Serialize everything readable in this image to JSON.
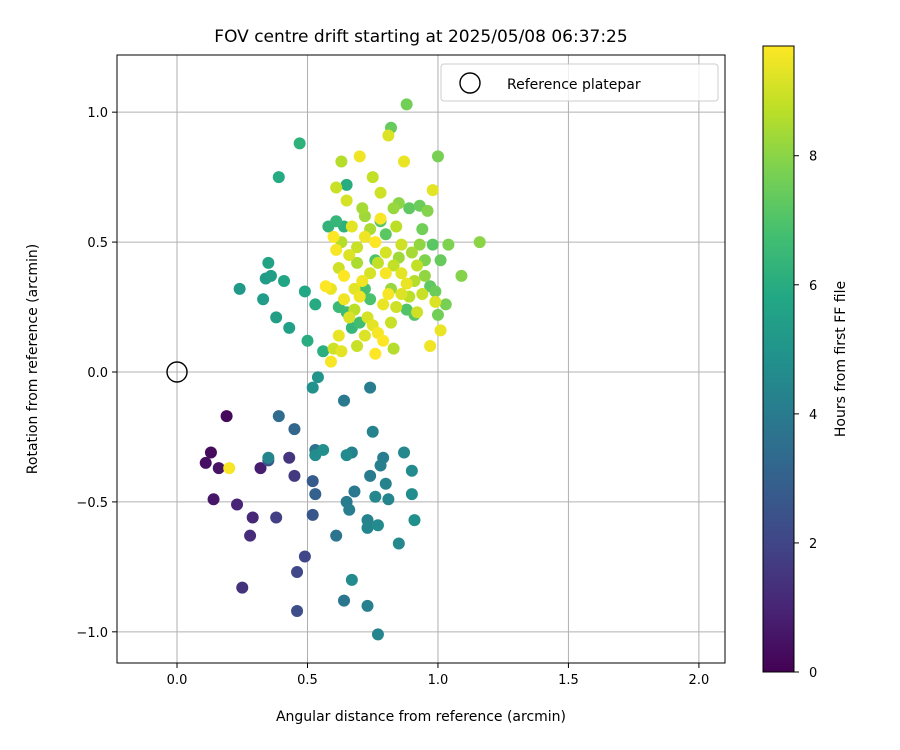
{
  "chart_data": {
    "type": "scatter",
    "title": "FOV centre drift starting at 2025/05/08 06:37:25",
    "xlabel": "Angular distance from reference (arcmin)",
    "ylabel": "Rotation from reference (arcmin)",
    "xlim": [
      -0.23,
      2.1
    ],
    "ylim": [
      -1.12,
      1.22
    ],
    "xticks": [
      0.0,
      0.5,
      1.0,
      1.5,
      2.0
    ],
    "xtick_labels": [
      "0.0",
      "0.5",
      "1.0",
      "1.5",
      "2.0"
    ],
    "yticks": [
      -1.0,
      -0.5,
      0.0,
      0.5,
      1.0
    ],
    "ytick_labels": [
      "−1.0",
      "−0.5",
      "0.0",
      "0.5",
      "1.0"
    ],
    "grid": true,
    "legend": {
      "placement": "top-right",
      "entries": [
        "Reference platepar"
      ]
    },
    "colorbar": {
      "label": "Hours from first FF file",
      "range": [
        0,
        9.7
      ],
      "ticks": [
        0,
        2,
        4,
        6,
        8
      ],
      "tick_labels": [
        "0",
        "2",
        "4",
        "6",
        "8"
      ],
      "colormap": "viridis"
    },
    "reference_point": {
      "x": 0.0,
      "y": 0.0
    },
    "points": [
      {
        "x": 0.19,
        "y": -0.17,
        "h": 0.2
      },
      {
        "x": 0.13,
        "y": -0.31,
        "h": 0.3
      },
      {
        "x": 0.11,
        "y": -0.35,
        "h": 0.4
      },
      {
        "x": 0.16,
        "y": -0.37,
        "h": 0.5
      },
      {
        "x": 0.14,
        "y": -0.49,
        "h": 0.6
      },
      {
        "x": 0.32,
        "y": -0.37,
        "h": 0.8
      },
      {
        "x": 0.23,
        "y": -0.51,
        "h": 1.0
      },
      {
        "x": 0.29,
        "y": -0.56,
        "h": 1.1
      },
      {
        "x": 0.28,
        "y": -0.63,
        "h": 1.2
      },
      {
        "x": 0.25,
        "y": -0.83,
        "h": 1.4
      },
      {
        "x": 0.43,
        "y": -0.33,
        "h": 1.5
      },
      {
        "x": 0.45,
        "y": -0.4,
        "h": 1.6
      },
      {
        "x": 0.38,
        "y": -0.56,
        "h": 1.8
      },
      {
        "x": 0.49,
        "y": -0.71,
        "h": 2.0
      },
      {
        "x": 0.46,
        "y": -0.77,
        "h": 2.1
      },
      {
        "x": 0.46,
        "y": -0.92,
        "h": 2.3
      },
      {
        "x": 0.35,
        "y": -0.34,
        "h": 2.5
      },
      {
        "x": 0.52,
        "y": -0.55,
        "h": 2.6
      },
      {
        "x": 0.52,
        "y": -0.42,
        "h": 2.8
      },
      {
        "x": 0.53,
        "y": -0.47,
        "h": 3.0
      },
      {
        "x": 0.45,
        "y": -0.22,
        "h": 3.2
      },
      {
        "x": 0.39,
        "y": -0.17,
        "h": 3.4
      },
      {
        "x": 0.53,
        "y": -0.3,
        "h": 3.6
      },
      {
        "x": 0.61,
        "y": -0.63,
        "h": 3.7
      },
      {
        "x": 0.64,
        "y": -0.88,
        "h": 3.8
      },
      {
        "x": 0.68,
        "y": -0.46,
        "h": 3.9
      },
      {
        "x": 0.65,
        "y": -0.5,
        "h": 4.0
      },
      {
        "x": 0.66,
        "y": -0.53,
        "h": 4.1
      },
      {
        "x": 0.67,
        "y": -0.31,
        "h": 4.2
      },
      {
        "x": 0.73,
        "y": -0.57,
        "h": 4.3
      },
      {
        "x": 0.73,
        "y": -0.6,
        "h": 4.4
      },
      {
        "x": 0.76,
        "y": -0.48,
        "h": 4.5
      },
      {
        "x": 0.77,
        "y": -0.59,
        "h": 4.6
      },
      {
        "x": 0.74,
        "y": -0.4,
        "h": 4.0
      },
      {
        "x": 0.78,
        "y": -0.36,
        "h": 4.2
      },
      {
        "x": 0.79,
        "y": -0.33,
        "h": 4.1
      },
      {
        "x": 0.8,
        "y": -0.43,
        "h": 4.3
      },
      {
        "x": 0.81,
        "y": -0.49,
        "h": 4.4
      },
      {
        "x": 0.87,
        "y": -0.31,
        "h": 4.5
      },
      {
        "x": 0.9,
        "y": -0.38,
        "h": 4.6
      },
      {
        "x": 0.9,
        "y": -0.47,
        "h": 4.7
      },
      {
        "x": 0.91,
        "y": -0.57,
        "h": 4.8
      },
      {
        "x": 0.85,
        "y": -0.66,
        "h": 4.5
      },
      {
        "x": 0.73,
        "y": -0.9,
        "h": 4.2
      },
      {
        "x": 0.77,
        "y": -1.01,
        "h": 4.4
      },
      {
        "x": 0.67,
        "y": -0.8,
        "h": 4.6
      },
      {
        "x": 0.64,
        "y": -0.11,
        "h": 3.9
      },
      {
        "x": 0.74,
        "y": -0.06,
        "h": 4.1
      },
      {
        "x": 0.75,
        "y": -0.23,
        "h": 4.3
      },
      {
        "x": 0.53,
        "y": -0.32,
        "h": 4.7
      },
      {
        "x": 0.56,
        "y": -0.3,
        "h": 4.8
      },
      {
        "x": 0.65,
        "y": -0.32,
        "h": 4.6
      },
      {
        "x": 0.54,
        "y": -0.02,
        "h": 5.0
      },
      {
        "x": 0.52,
        "y": -0.06,
        "h": 4.9
      },
      {
        "x": 0.35,
        "y": -0.33,
        "h": 4.4
      },
      {
        "x": 0.2,
        "y": -0.37,
        "h": 9.6
      },
      {
        "x": 0.24,
        "y": 0.32,
        "h": 5.2
      },
      {
        "x": 0.33,
        "y": 0.28,
        "h": 5.3
      },
      {
        "x": 0.38,
        "y": 0.21,
        "h": 5.4
      },
      {
        "x": 0.43,
        "y": 0.17,
        "h": 5.5
      },
      {
        "x": 0.34,
        "y": 0.36,
        "h": 5.3
      },
      {
        "x": 0.36,
        "y": 0.37,
        "h": 5.4
      },
      {
        "x": 0.35,
        "y": 0.42,
        "h": 5.6
      },
      {
        "x": 0.41,
        "y": 0.35,
        "h": 5.7
      },
      {
        "x": 0.49,
        "y": 0.31,
        "h": 5.8
      },
      {
        "x": 0.53,
        "y": 0.26,
        "h": 5.9
      },
      {
        "x": 0.5,
        "y": 0.12,
        "h": 6.0
      },
      {
        "x": 0.56,
        "y": 0.08,
        "h": 6.1
      },
      {
        "x": 0.39,
        "y": 0.75,
        "h": 5.9
      },
      {
        "x": 0.47,
        "y": 0.88,
        "h": 6.2
      },
      {
        "x": 0.65,
        "y": 0.72,
        "h": 6.0
      },
      {
        "x": 0.58,
        "y": 0.56,
        "h": 6.3
      },
      {
        "x": 0.61,
        "y": 0.58,
        "h": 6.4
      },
      {
        "x": 0.64,
        "y": 0.56,
        "h": 6.2
      },
      {
        "x": 0.62,
        "y": 0.25,
        "h": 6.5
      },
      {
        "x": 0.65,
        "y": 0.23,
        "h": 6.6
      },
      {
        "x": 0.67,
        "y": 0.17,
        "h": 6.4
      },
      {
        "x": 0.7,
        "y": 0.19,
        "h": 6.7
      },
      {
        "x": 0.72,
        "y": 0.32,
        "h": 6.8
      },
      {
        "x": 0.74,
        "y": 0.28,
        "h": 6.9
      },
      {
        "x": 0.76,
        "y": 0.43,
        "h": 7.0
      },
      {
        "x": 0.78,
        "y": 0.58,
        "h": 7.1
      },
      {
        "x": 0.8,
        "y": 0.53,
        "h": 7.2
      },
      {
        "x": 0.82,
        "y": 0.94,
        "h": 7.4
      },
      {
        "x": 0.88,
        "y": 1.03,
        "h": 7.6
      },
      {
        "x": 1.0,
        "y": 0.83,
        "h": 7.7
      },
      {
        "x": 0.89,
        "y": 0.63,
        "h": 7.3
      },
      {
        "x": 0.93,
        "y": 0.64,
        "h": 7.5
      },
      {
        "x": 0.94,
        "y": 0.55,
        "h": 7.6
      },
      {
        "x": 0.98,
        "y": 0.49,
        "h": 7.2
      },
      {
        "x": 1.01,
        "y": 0.43,
        "h": 7.4
      },
      {
        "x": 1.04,
        "y": 0.49,
        "h": 7.8
      },
      {
        "x": 1.09,
        "y": 0.37,
        "h": 7.9
      },
      {
        "x": 1.16,
        "y": 0.5,
        "h": 8.0
      },
      {
        "x": 1.03,
        "y": 0.26,
        "h": 7.7
      },
      {
        "x": 1.0,
        "y": 0.22,
        "h": 7.6
      },
      {
        "x": 0.99,
        "y": 0.31,
        "h": 7.5
      },
      {
        "x": 0.97,
        "y": 0.33,
        "h": 7.3
      },
      {
        "x": 0.91,
        "y": 0.22,
        "h": 7.1
      },
      {
        "x": 0.88,
        "y": 0.24,
        "h": 7.0
      },
      {
        "x": 0.95,
        "y": 0.43,
        "h": 7.8
      },
      {
        "x": 0.83,
        "y": 0.63,
        "h": 8.2
      },
      {
        "x": 0.71,
        "y": 0.63,
        "h": 8.4
      },
      {
        "x": 0.63,
        "y": 0.81,
        "h": 8.6
      },
      {
        "x": 0.75,
        "y": 0.75,
        "h": 8.8
      },
      {
        "x": 0.78,
        "y": 0.69,
        "h": 9.0
      },
      {
        "x": 0.81,
        "y": 0.91,
        "h": 9.2
      },
      {
        "x": 0.7,
        "y": 0.83,
        "h": 9.5
      },
      {
        "x": 0.87,
        "y": 0.81,
        "h": 9.4
      },
      {
        "x": 0.98,
        "y": 0.7,
        "h": 9.3
      },
      {
        "x": 0.61,
        "y": 0.71,
        "h": 8.9
      },
      {
        "x": 0.65,
        "y": 0.66,
        "h": 9.1
      },
      {
        "x": 0.72,
        "y": 0.6,
        "h": 8.3
      },
      {
        "x": 0.74,
        "y": 0.55,
        "h": 8.5
      },
      {
        "x": 0.78,
        "y": 0.59,
        "h": 9.6
      },
      {
        "x": 0.84,
        "y": 0.56,
        "h": 8.7
      },
      {
        "x": 0.86,
        "y": 0.49,
        "h": 9.0
      },
      {
        "x": 0.9,
        "y": 0.46,
        "h": 8.4
      },
      {
        "x": 0.92,
        "y": 0.41,
        "h": 8.8
      },
      {
        "x": 0.95,
        "y": 0.37,
        "h": 8.1
      },
      {
        "x": 0.99,
        "y": 0.27,
        "h": 9.2
      },
      {
        "x": 1.01,
        "y": 0.16,
        "h": 9.4
      },
      {
        "x": 0.97,
        "y": 0.1,
        "h": 9.5
      },
      {
        "x": 0.83,
        "y": 0.09,
        "h": 8.6
      },
      {
        "x": 0.76,
        "y": 0.07,
        "h": 9.7
      },
      {
        "x": 0.69,
        "y": 0.1,
        "h": 8.9
      },
      {
        "x": 0.63,
        "y": 0.08,
        "h": 9.3
      },
      {
        "x": 0.59,
        "y": 0.04,
        "h": 9.6
      },
      {
        "x": 0.6,
        "y": 0.09,
        "h": 9.0
      },
      {
        "x": 0.62,
        "y": 0.14,
        "h": 9.4
      },
      {
        "x": 0.66,
        "y": 0.21,
        "h": 9.2
      },
      {
        "x": 0.68,
        "y": 0.24,
        "h": 8.7
      },
      {
        "x": 0.7,
        "y": 0.29,
        "h": 9.5
      },
      {
        "x": 0.73,
        "y": 0.21,
        "h": 9.1
      },
      {
        "x": 0.75,
        "y": 0.18,
        "h": 9.3
      },
      {
        "x": 0.77,
        "y": 0.15,
        "h": 9.6
      },
      {
        "x": 0.79,
        "y": 0.12,
        "h": 9.7
      },
      {
        "x": 0.82,
        "y": 0.19,
        "h": 8.9
      },
      {
        "x": 0.84,
        "y": 0.25,
        "h": 9.0
      },
      {
        "x": 0.86,
        "y": 0.3,
        "h": 9.2
      },
      {
        "x": 0.88,
        "y": 0.34,
        "h": 9.4
      },
      {
        "x": 0.8,
        "y": 0.38,
        "h": 9.6
      },
      {
        "x": 0.77,
        "y": 0.42,
        "h": 8.8
      },
      {
        "x": 0.74,
        "y": 0.38,
        "h": 9.1
      },
      {
        "x": 0.71,
        "y": 0.35,
        "h": 9.5
      },
      {
        "x": 0.68,
        "y": 0.32,
        "h": 9.3
      },
      {
        "x": 0.64,
        "y": 0.37,
        "h": 9.7
      },
      {
        "x": 0.62,
        "y": 0.4,
        "h": 9.0
      },
      {
        "x": 0.59,
        "y": 0.32,
        "h": 9.4
      },
      {
        "x": 0.61,
        "y": 0.47,
        "h": 9.6
      },
      {
        "x": 0.63,
        "y": 0.5,
        "h": 8.6
      },
      {
        "x": 0.66,
        "y": 0.45,
        "h": 9.2
      },
      {
        "x": 0.69,
        "y": 0.48,
        "h": 8.9
      },
      {
        "x": 0.72,
        "y": 0.52,
        "h": 9.5
      },
      {
        "x": 0.76,
        "y": 0.5,
        "h": 9.7
      },
      {
        "x": 0.8,
        "y": 0.46,
        "h": 9.1
      },
      {
        "x": 0.83,
        "y": 0.41,
        "h": 8.8
      },
      {
        "x": 0.86,
        "y": 0.38,
        "h": 9.3
      },
      {
        "x": 0.89,
        "y": 0.29,
        "h": 8.7
      },
      {
        "x": 0.92,
        "y": 0.23,
        "h": 9.0
      },
      {
        "x": 0.81,
        "y": 0.3,
        "h": 9.6
      },
      {
        "x": 0.79,
        "y": 0.26,
        "h": 9.4
      },
      {
        "x": 0.72,
        "y": 0.14,
        "h": 9.2
      },
      {
        "x": 0.69,
        "y": 0.42,
        "h": 8.5
      },
      {
        "x": 0.85,
        "y": 0.44,
        "h": 8.3
      },
      {
        "x": 0.93,
        "y": 0.49,
        "h": 8.1
      },
      {
        "x": 0.96,
        "y": 0.62,
        "h": 7.9
      },
      {
        "x": 0.85,
        "y": 0.65,
        "h": 8.0
      },
      {
        "x": 0.82,
        "y": 0.32,
        "h": 8.2
      },
      {
        "x": 0.6,
        "y": 0.52,
        "h": 9.7
      },
      {
        "x": 0.67,
        "y": 0.56,
        "h": 9.3
      },
      {
        "x": 0.57,
        "y": 0.33,
        "h": 9.8
      },
      {
        "x": 0.64,
        "y": 0.28,
        "h": 9.5
      },
      {
        "x": 0.91,
        "y": 0.35,
        "h": 8.6
      },
      {
        "x": 0.94,
        "y": 0.3,
        "h": 8.9
      }
    ]
  }
}
